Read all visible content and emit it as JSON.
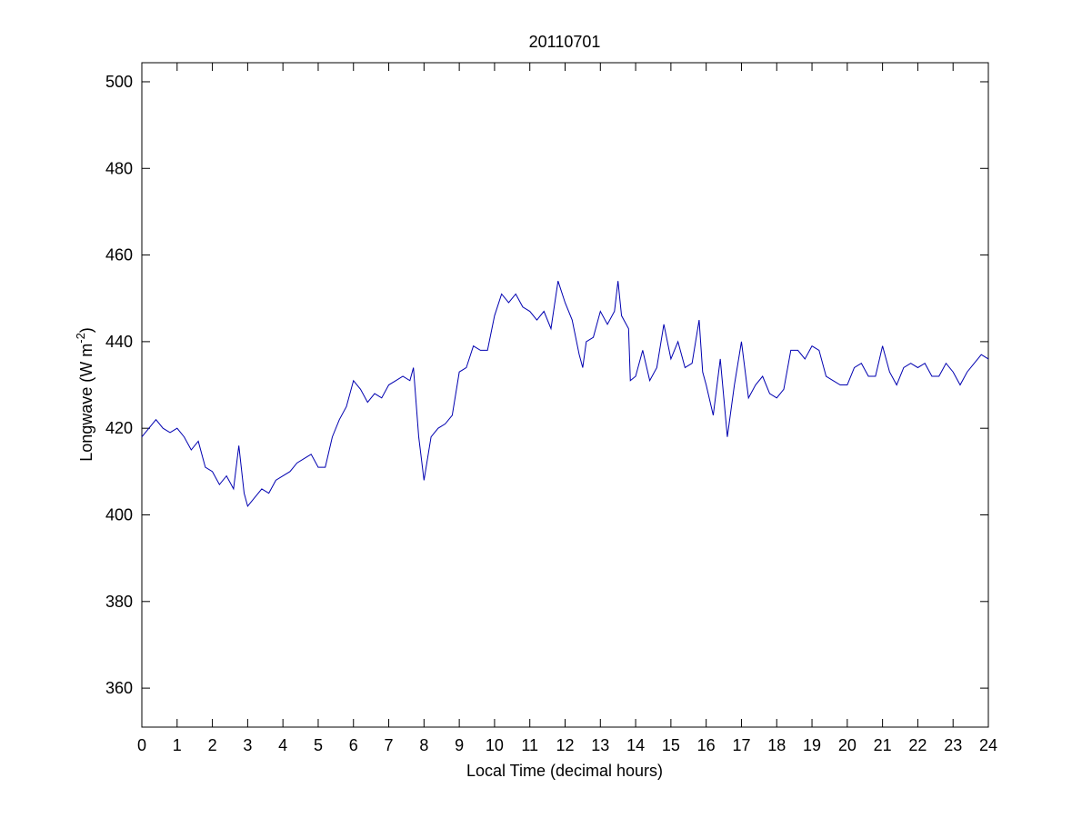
{
  "chart_data": {
    "type": "line",
    "title": "20110701",
    "xlabel": "Local Time (decimal hours)",
    "ylabel": {
      "text": "Longwave (W m",
      "sup": "-2",
      "tail": ")"
    },
    "color": "#0000b0",
    "x": [
      0,
      0.2,
      0.4,
      0.6,
      0.8,
      1.0,
      1.2,
      1.4,
      1.6,
      1.8,
      2.0,
      2.2,
      2.4,
      2.6,
      2.75,
      2.9,
      3.0,
      3.2,
      3.4,
      3.6,
      3.8,
      4.0,
      4.2,
      4.4,
      4.6,
      4.8,
      5.0,
      5.2,
      5.4,
      5.6,
      5.8,
      6.0,
      6.2,
      6.4,
      6.6,
      6.8,
      7.0,
      7.2,
      7.4,
      7.6,
      7.7,
      7.85,
      8.0,
      8.2,
      8.4,
      8.6,
      8.8,
      9.0,
      9.2,
      9.4,
      9.6,
      9.8,
      10.0,
      10.2,
      10.4,
      10.6,
      10.8,
      11.0,
      11.2,
      11.4,
      11.6,
      11.8,
      12.0,
      12.2,
      12.4,
      12.5,
      12.6,
      12.8,
      13.0,
      13.2,
      13.4,
      13.5,
      13.6,
      13.8,
      13.85,
      14.0,
      14.2,
      14.4,
      14.6,
      14.8,
      15.0,
      15.2,
      15.4,
      15.6,
      15.8,
      15.9,
      16.0,
      16.2,
      16.4,
      16.6,
      16.8,
      17.0,
      17.2,
      17.4,
      17.6,
      17.8,
      18.0,
      18.2,
      18.4,
      18.6,
      18.8,
      19.0,
      19.2,
      19.4,
      19.6,
      19.8,
      20.0,
      20.2,
      20.4,
      20.6,
      20.8,
      21.0,
      21.2,
      21.4,
      21.6,
      21.8,
      22.0,
      22.2,
      22.4,
      22.6,
      22.8,
      23.0,
      23.2,
      23.4,
      23.6,
      23.8,
      24.0
    ],
    "values": [
      418,
      420,
      422,
      420,
      419,
      420,
      418,
      415,
      417,
      411,
      410,
      407,
      409,
      406,
      416,
      405,
      402,
      404,
      406,
      405,
      408,
      409,
      410,
      412,
      413,
      414,
      411,
      411,
      418,
      422,
      425,
      431,
      429,
      426,
      428,
      427,
      430,
      431,
      432,
      431,
      434,
      418,
      408,
      418,
      420,
      421,
      423,
      433,
      434,
      439,
      438,
      438,
      446,
      451,
      449,
      451,
      448,
      447,
      445,
      447,
      443,
      454,
      449,
      445,
      437,
      434,
      440,
      441,
      447,
      444,
      447,
      454,
      446,
      443,
      431,
      432,
      438,
      431,
      434,
      444,
      436,
      440,
      434,
      435,
      445,
      433,
      430,
      423,
      436,
      418,
      430,
      440,
      427,
      430,
      432,
      428,
      427,
      429,
      438,
      438,
      436,
      439,
      438,
      432,
      431,
      430,
      430,
      434,
      435,
      432,
      432,
      439,
      433,
      430,
      434,
      435,
      434,
      435,
      432,
      432,
      435,
      433,
      430,
      433,
      435,
      437,
      436
    ],
    "xlim": [
      0,
      24
    ],
    "xticks": [
      0,
      1,
      2,
      3,
      4,
      5,
      6,
      7,
      8,
      9,
      10,
      11,
      12,
      13,
      14,
      15,
      16,
      17,
      18,
      19,
      20,
      21,
      22,
      23,
      24
    ],
    "ylim": [
      351,
      504.4
    ],
    "yticks": [
      360,
      380,
      400,
      420,
      440,
      460,
      480,
      500
    ]
  }
}
